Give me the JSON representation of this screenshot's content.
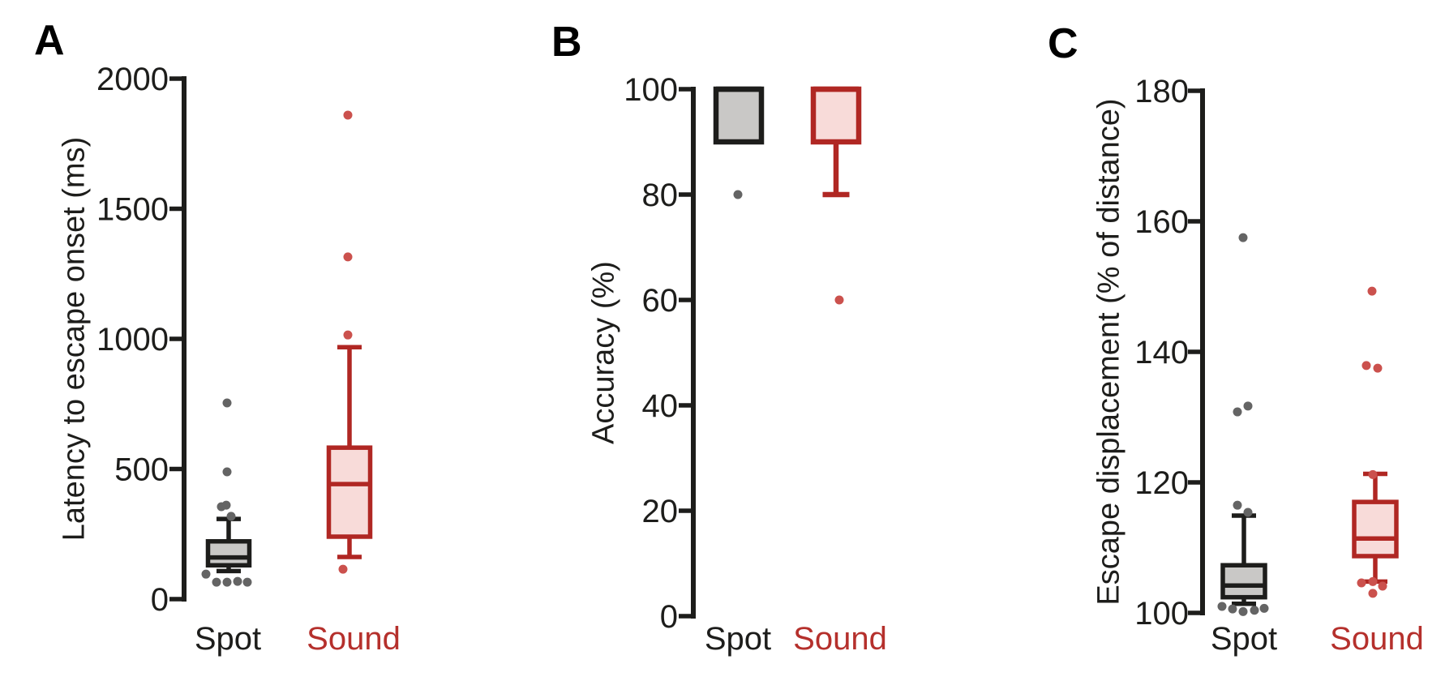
{
  "figure": {
    "background": "#ffffff",
    "colors": {
      "axis": "#1d1d1b",
      "spot_stroke": "#1d1d1b",
      "spot_fill": "#c9c8c6",
      "spot_dot": "#646464",
      "spot_label": "#1d1d1b",
      "sound_stroke": "#b02723",
      "sound_fill": "#f8dbd9",
      "sound_dot": "#cb514d",
      "sound_label": "#b5302c"
    }
  },
  "chart_data": [
    {
      "type": "box",
      "panel_label": "A",
      "ylabel": "Latency to escape onset (ms)",
      "ylim": [
        0,
        2000
      ],
      "yticks": [
        0,
        500,
        1000,
        1500,
        2000
      ],
      "grid": false,
      "categories": [
        "Spot",
        "Sound"
      ],
      "series": [
        {
          "name": "Spot",
          "whisker_low": 108,
          "q1": 130,
          "median": 160,
          "q3": 222,
          "whisker_high": 308,
          "outliers": [
            [
              96,
              -28
            ],
            [
              65,
              -15
            ],
            [
              65,
              -2
            ],
            [
              68,
              11
            ],
            [
              65,
              23
            ],
            [
              318,
              3
            ],
            [
              355,
              -9
            ],
            [
              361,
              -3
            ],
            [
              489,
              -2
            ],
            [
              754,
              -2
            ]
          ]
        },
        {
          "name": "Sound",
          "whisker_low": 162,
          "q1": 240,
          "median": 442,
          "q3": 582,
          "whisker_high": 968,
          "outliers": [
            [
              115,
              -8
            ],
            [
              1015,
              -2
            ],
            [
              1315,
              -2
            ],
            [
              1860,
              -2
            ]
          ]
        }
      ]
    },
    {
      "type": "box",
      "panel_label": "B",
      "ylabel": "Accuracy (%)",
      "ylim": [
        0,
        100
      ],
      "yticks": [
        0,
        20,
        40,
        60,
        80,
        100
      ],
      "grid": false,
      "categories": [
        "Spot",
        "Sound"
      ],
      "series": [
        {
          "name": "Spot",
          "whisker_low": null,
          "q1": 90,
          "median": 100,
          "q3": 100,
          "whisker_high": null,
          "outliers": [
            [
              80,
              -1
            ]
          ]
        },
        {
          "name": "Sound",
          "whisker_low": 80,
          "q1": 90,
          "median": 100,
          "q3": 100,
          "whisker_high": null,
          "outliers": [
            [
              60,
              4
            ]
          ]
        }
      ]
    },
    {
      "type": "box",
      "panel_label": "C",
      "ylabel": "Escape displacement (% of distance)",
      "ylim": [
        100,
        180
      ],
      "yticks": [
        100,
        120,
        140,
        160,
        180
      ],
      "grid": false,
      "categories": [
        "Spot",
        "Sound"
      ],
      "series": [
        {
          "name": "Spot",
          "whisker_low": 101.4,
          "q1": 102.4,
          "median": 104.2,
          "q3": 107.3,
          "whisker_high": 114.9,
          "outliers": [
            [
              101,
              -27
            ],
            [
              100.6,
              -14
            ],
            [
              100.2,
              -1
            ],
            [
              100.4,
              13
            ],
            [
              100.7,
              25
            ],
            [
              115.4,
              5
            ],
            [
              116.5,
              -8
            ],
            [
              130.8,
              -8
            ],
            [
              131.7,
              5
            ],
            [
              157.5,
              -1
            ]
          ]
        },
        {
          "name": "Sound",
          "whisker_low": 104.8,
          "q1": 108.7,
          "median": 111.4,
          "q3": 117,
          "whisker_high": 121.3,
          "outliers": [
            [
              103,
              -3
            ],
            [
              104.1,
              9
            ],
            [
              104.6,
              -17
            ],
            [
              104.8,
              -3
            ],
            [
              121.2,
              -3
            ],
            [
              137.5,
              3
            ],
            [
              137.9,
              -11
            ],
            [
              149.3,
              -4
            ]
          ]
        }
      ]
    }
  ]
}
